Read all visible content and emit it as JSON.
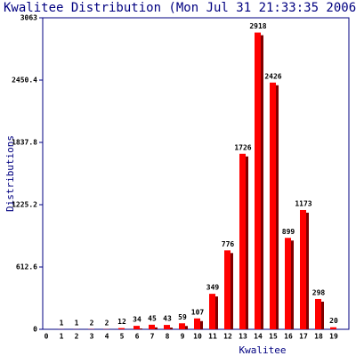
{
  "chart_data": {
    "type": "bar",
    "title": "Kwalitee Distribution (Mon Jul 31 21:33:35 2006",
    "x_label": "Kwalitee",
    "y_label": "Distributions",
    "categories": [
      "0",
      "1",
      "2",
      "3",
      "4",
      "5",
      "6",
      "7",
      "8",
      "9",
      "10",
      "11",
      "12",
      "13",
      "14",
      "15",
      "16",
      "17",
      "18",
      "19"
    ],
    "values": [
      null,
      1,
      1,
      2,
      2,
      12,
      34,
      45,
      43,
      59,
      107,
      349,
      776,
      1726,
      2918,
      2426,
      899,
      1173,
      298,
      20
    ],
    "color": "#ff0000",
    "shadow_color": "#800000",
    "ylim": [
      0,
      3063
    ],
    "yticks": [
      0,
      612.6,
      1225.2,
      1837.8,
      2450.4,
      3063
    ]
  }
}
